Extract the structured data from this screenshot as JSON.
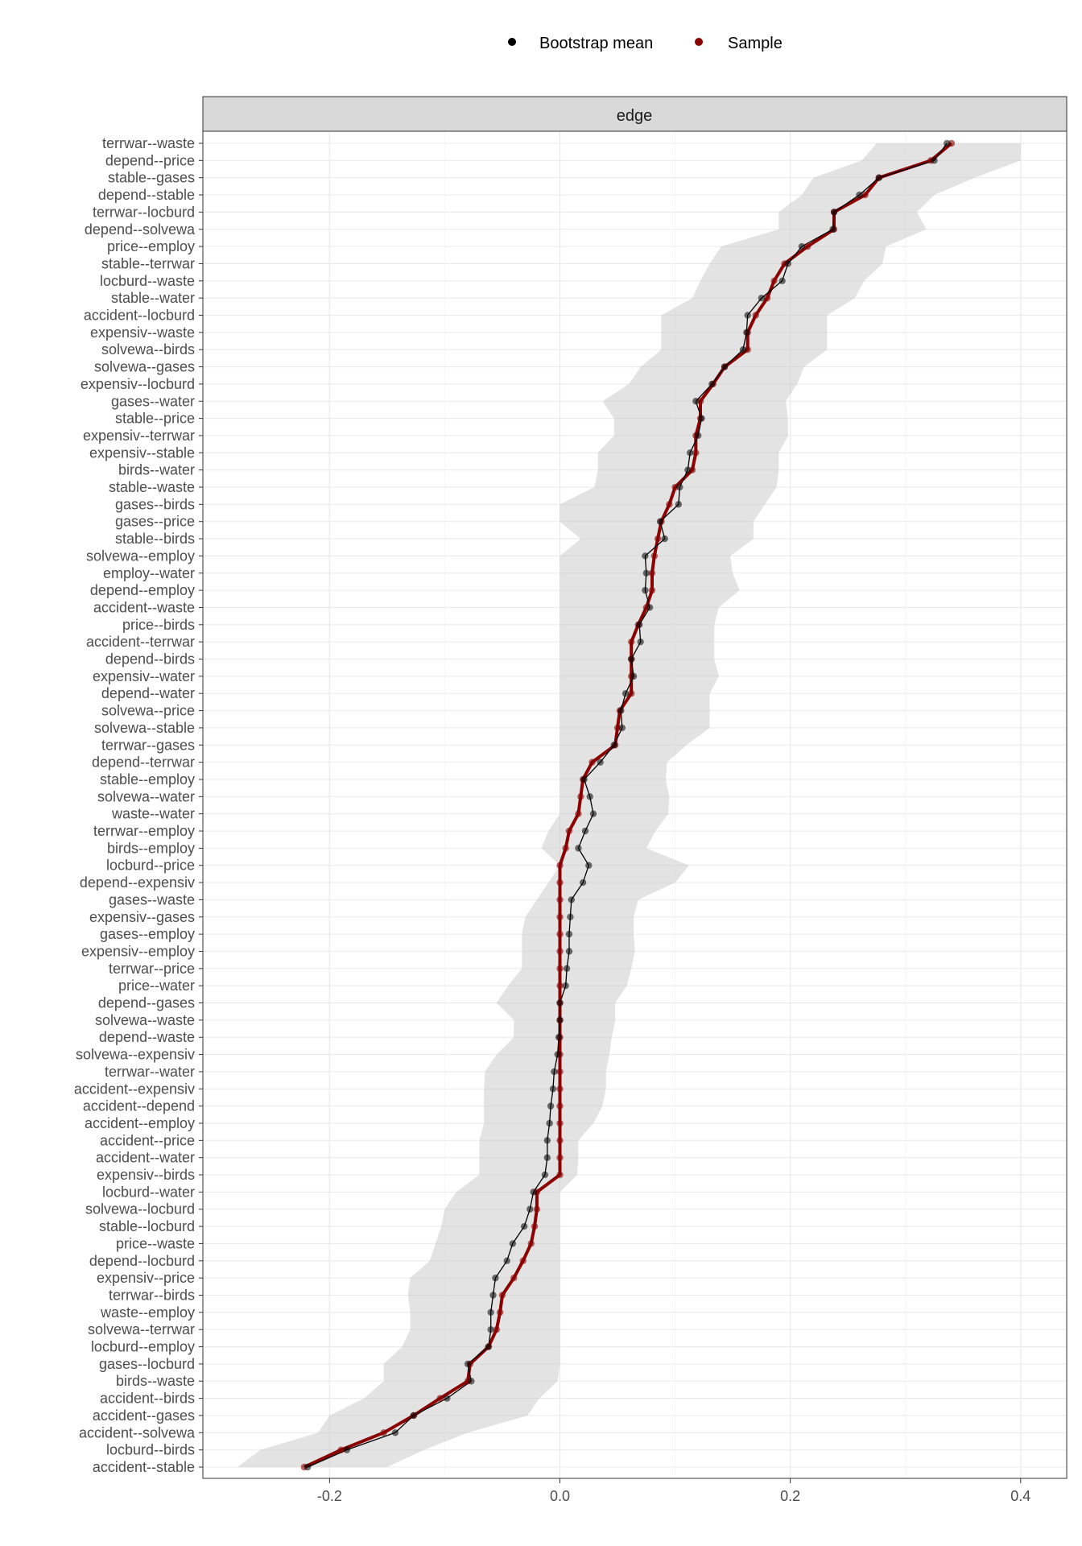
{
  "chart_data": {
    "type": "line",
    "facet": "edge",
    "legend": {
      "position": "top",
      "entries": [
        {
          "label": "Bootstrap mean",
          "color": "#000000"
        },
        {
          "label": "Sample",
          "color": "#8b0000"
        }
      ]
    },
    "xlim": [
      -0.31,
      0.44
    ],
    "x_ticks": [
      -0.2,
      0.0,
      0.2,
      0.4
    ],
    "x_tick_labels": [
      "-0.2",
      "0.0",
      "0.2",
      "0.4"
    ],
    "grid": true,
    "edges": [
      "terrwar--waste",
      "depend--price",
      "stable--gases",
      "depend--stable",
      "terrwar--locburd",
      "depend--solvewa",
      "price--employ",
      "stable--terrwar",
      "locburd--waste",
      "stable--water",
      "accident--locburd",
      "expensiv--waste",
      "solvewa--birds",
      "solvewa--gases",
      "expensiv--locburd",
      "gases--water",
      "stable--price",
      "expensiv--terrwar",
      "expensiv--stable",
      "birds--water",
      "stable--waste",
      "gases--birds",
      "gases--price",
      "stable--birds",
      "solvewa--employ",
      "employ--water",
      "depend--employ",
      "accident--waste",
      "price--birds",
      "accident--terrwar",
      "depend--birds",
      "expensiv--water",
      "depend--water",
      "solvewa--price",
      "solvewa--stable",
      "terrwar--gases",
      "depend--terrwar",
      "stable--employ",
      "solvewa--water",
      "waste--water",
      "terrwar--employ",
      "birds--employ",
      "locburd--price",
      "depend--expensiv",
      "gases--waste",
      "expensiv--gases",
      "gases--employ",
      "expensiv--employ",
      "terrwar--price",
      "price--water",
      "depend--gases",
      "solvewa--waste",
      "depend--waste",
      "solvewa--expensiv",
      "terrwar--water",
      "accident--expensiv",
      "accident--depend",
      "accident--employ",
      "accident--price",
      "accident--water",
      "expensiv--birds",
      "locburd--water",
      "solvewa--locburd",
      "stable--locburd",
      "price--waste",
      "depend--locburd",
      "expensiv--price",
      "terrwar--birds",
      "waste--employ",
      "solvewa--terrwar",
      "locburd--employ",
      "gases--locburd",
      "birds--waste",
      "accident--birds",
      "accident--gases",
      "accident--solvewa",
      "locburd--birds",
      "accident--stable"
    ],
    "series": [
      {
        "name": "Bootstrap mean",
        "color": "#000000",
        "values": [
          0.336,
          0.325,
          0.277,
          0.26,
          0.238,
          0.237,
          0.21,
          0.198,
          0.193,
          0.175,
          0.163,
          0.162,
          0.159,
          0.143,
          0.132,
          0.118,
          0.123,
          0.12,
          0.113,
          0.111,
          0.104,
          0.103,
          0.087,
          0.091,
          0.074,
          0.075,
          0.074,
          0.078,
          0.069,
          0.07,
          0.062,
          0.064,
          0.057,
          0.053,
          0.054,
          0.047,
          0.035,
          0.021,
          0.026,
          0.029,
          0.022,
          0.016,
          0.025,
          0.02,
          0.01,
          0.009,
          0.008,
          0.008,
          0.006,
          0.005,
          0.0,
          0.0,
          -0.001,
          -0.002,
          -0.005,
          -0.006,
          -0.008,
          -0.009,
          -0.011,
          -0.011,
          -0.013,
          -0.023,
          -0.026,
          -0.031,
          -0.041,
          -0.046,
          -0.056,
          -0.058,
          -0.06,
          -0.06,
          -0.062,
          -0.08,
          -0.077,
          -0.098,
          -0.127,
          -0.143,
          -0.185,
          -0.219
        ]
      },
      {
        "name": "Sample",
        "color": "#8b0000",
        "values": [
          0.34,
          0.322,
          0.277,
          0.265,
          0.238,
          0.238,
          0.215,
          0.195,
          0.186,
          0.18,
          0.17,
          0.163,
          0.163,
          0.143,
          0.133,
          0.122,
          0.122,
          0.118,
          0.118,
          0.115,
          0.1,
          0.095,
          0.088,
          0.085,
          0.082,
          0.08,
          0.08,
          0.075,
          0.068,
          0.062,
          0.062,
          0.062,
          0.062,
          0.052,
          0.05,
          0.048,
          0.028,
          0.02,
          0.018,
          0.016,
          0.008,
          0.005,
          0.0,
          0.0,
          0.0,
          0.0,
          0.0,
          0.0,
          0.0,
          0.0,
          0.0,
          0.0,
          0.0,
          0.0,
          0.0,
          0.0,
          0.0,
          0.0,
          0.0,
          0.0,
          0.0,
          -0.02,
          -0.02,
          -0.022,
          -0.025,
          -0.032,
          -0.04,
          -0.05,
          -0.052,
          -0.055,
          -0.062,
          -0.078,
          -0.08,
          -0.104,
          -0.127,
          -0.153,
          -0.19,
          -0.222
        ]
      },
      {
        "name": "",
        "type": "band",
        "lower": [
          0.275,
          0.262,
          0.22,
          0.21,
          0.19,
          0.19,
          0.14,
          0.13,
          0.122,
          0.115,
          0.088,
          0.088,
          0.088,
          0.07,
          0.06,
          0.037,
          0.047,
          0.047,
          0.033,
          0.033,
          0.03,
          0.0,
          0.0,
          0.018,
          0.0,
          0.0,
          0.0,
          0.0,
          0.0,
          0.0,
          0.0,
          0.0,
          0.0,
          0.0,
          0.0,
          0.0,
          0.0,
          0.0,
          0.0,
          0.0,
          -0.01,
          -0.016,
          0.0,
          -0.01,
          -0.02,
          -0.03,
          -0.033,
          -0.033,
          -0.033,
          -0.045,
          -0.055,
          -0.04,
          -0.04,
          -0.055,
          -0.065,
          -0.066,
          -0.066,
          -0.066,
          -0.07,
          -0.07,
          -0.07,
          -0.09,
          -0.1,
          -0.103,
          -0.108,
          -0.113,
          -0.13,
          -0.132,
          -0.13,
          -0.13,
          -0.137,
          -0.153,
          -0.153,
          -0.17,
          -0.2,
          -0.21,
          -0.26,
          -0.28
        ],
        "upper": [
          0.4,
          0.4,
          0.36,
          0.325,
          0.31,
          0.318,
          0.283,
          0.28,
          0.264,
          0.256,
          0.232,
          0.232,
          0.232,
          0.212,
          0.206,
          0.196,
          0.198,
          0.198,
          0.19,
          0.19,
          0.188,
          0.178,
          0.168,
          0.168,
          0.148,
          0.15,
          0.156,
          0.138,
          0.134,
          0.134,
          0.134,
          0.138,
          0.13,
          0.13,
          0.13,
          0.11,
          0.093,
          0.092,
          0.095,
          0.094,
          0.083,
          0.075,
          0.112,
          0.1,
          0.068,
          0.064,
          0.064,
          0.065,
          0.062,
          0.058,
          0.048,
          0.048,
          0.045,
          0.043,
          0.04,
          0.04,
          0.037,
          0.029,
          0.016,
          0.016,
          0.015,
          0.0,
          0.0,
          0.0,
          0.0,
          0.0,
          0.0,
          0.0,
          0.0,
          0.0,
          0.0,
          0.0,
          -0.002,
          -0.018,
          -0.028,
          -0.08,
          -0.118,
          -0.15
        ]
      }
    ]
  }
}
